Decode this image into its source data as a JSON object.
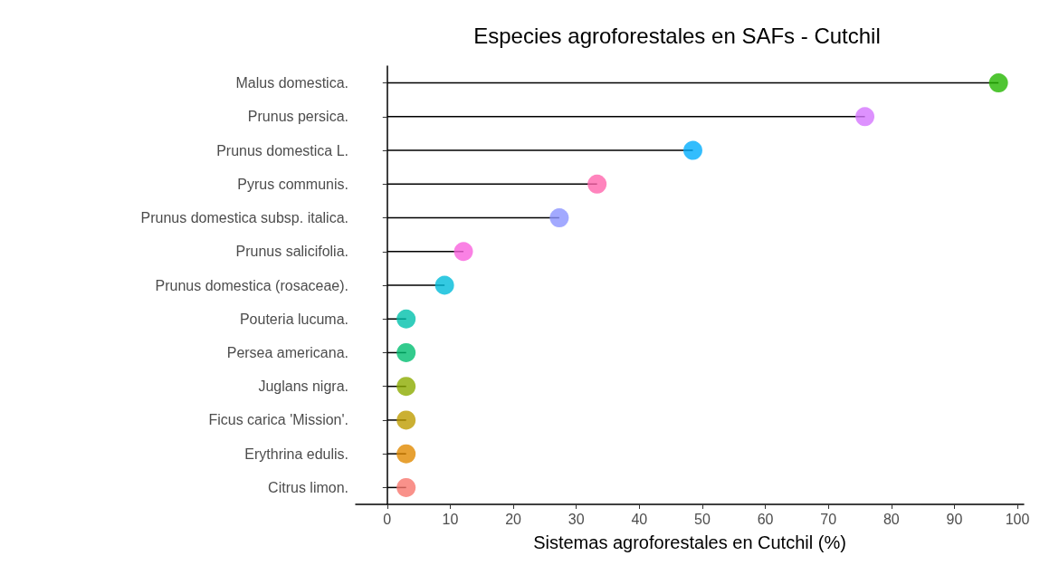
{
  "chart_data": {
    "type": "lollipop",
    "title": "Especies agroforestales en SAFs - Cutchil",
    "xlabel": "Sistemas agroforestales en Cutchil (%)",
    "orientation": "horizontal",
    "categories": [
      "Malus domestica.",
      "Prunus persica.",
      "Prunus domestica L.",
      "Pyrus communis.",
      "Prunus domestica subsp. italica.",
      "Prunus salicifolia.",
      "Prunus domestica (rosaceae).",
      "Pouteria lucuma.",
      "Persea americana.",
      "Juglans nigra.",
      "Ficus carica 'Mission'.",
      "Erythrina edulis.",
      "Citrus limon."
    ],
    "values": [
      97.0,
      75.8,
      48.5,
      33.3,
      27.3,
      12.1,
      9.1,
      3.0,
      3.0,
      3.0,
      3.0,
      3.0,
      3.0
    ],
    "colors": [
      "#24B700",
      "#D575FE",
      "#00ACFC",
      "#FF65AC",
      "#8B93FF",
      "#F962DD",
      "#00BBDA",
      "#00C1AB",
      "#00BE70",
      "#8CAB00",
      "#BE9C00",
      "#E18A00",
      "#F8766D"
    ],
    "xlim": [
      -5,
      101
    ],
    "xticks": [
      0,
      10,
      20,
      30,
      40,
      50,
      60,
      70,
      80,
      90,
      100
    ],
    "marker": "circle"
  }
}
